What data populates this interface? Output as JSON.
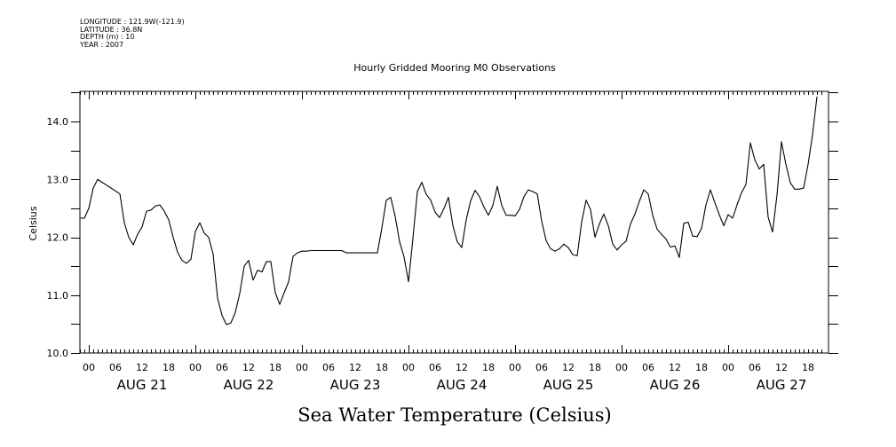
{
  "header": {
    "meta_lines": [
      "LONGITUDE : 121.9W(-121.9)",
      "LATITUDE : 36.8N",
      "DEPTH (m) : 10",
      "YEAR : 2007"
    ]
  },
  "chart_data": {
    "type": "line",
    "title": "Hourly Gridded Mooring M0 Observations",
    "xlabel": "Sea Water Temperature (Celsius)",
    "ylabel": "Celsius",
    "ylim": [
      10.0,
      14.5
    ],
    "y_ticks": [
      10.0,
      10.5,
      11.0,
      11.5,
      12.0,
      12.5,
      13.0,
      13.5,
      14.0,
      14.5
    ],
    "y_tick_labels": [
      "10.0",
      "11.0",
      "12.0",
      "13.0",
      "14.0"
    ],
    "y_tick_label_values": [
      10.0,
      11.0,
      12.0,
      13.0,
      14.0
    ],
    "x_range_hours": [
      -2,
      165
    ],
    "x_units": "hours since 2007-08-21 00:00",
    "x_hour_labels": [
      "00",
      "06",
      "12",
      "18"
    ],
    "x_day_labels": [
      "AUG 21",
      "AUG 22",
      "AUG 23",
      "AUG 24",
      "AUG 25",
      "AUG 26",
      "AUG 27"
    ],
    "x_start_label": "2007-08-20 22:00",
    "x_step_hours": 1,
    "grid": false,
    "series": [
      {
        "name": "Sea Water Temperature",
        "values": [
          12.33,
          12.33,
          12.5,
          12.85,
          13.0,
          12.95,
          12.9,
          12.85,
          12.8,
          12.75,
          12.25,
          12.0,
          11.87,
          12.05,
          12.18,
          12.45,
          12.47,
          12.54,
          12.56,
          12.45,
          12.3,
          12.0,
          11.74,
          11.6,
          11.55,
          11.62,
          12.1,
          12.25,
          12.07,
          12.0,
          11.71,
          10.95,
          10.65,
          10.49,
          10.52,
          10.7,
          11.03,
          11.5,
          11.6,
          11.26,
          11.43,
          11.4,
          11.58,
          11.58,
          11.04,
          10.84,
          11.04,
          11.23,
          11.67,
          11.73,
          11.76,
          11.76,
          11.77,
          11.77,
          11.77,
          11.77,
          11.77,
          11.77,
          11.77,
          11.77,
          11.73,
          11.73,
          11.73,
          11.73,
          11.73,
          11.73,
          11.73,
          11.73,
          12.16,
          12.64,
          12.69,
          12.36,
          11.92,
          11.66,
          11.23,
          11.98,
          12.79,
          12.95,
          12.74,
          12.64,
          12.43,
          12.34,
          12.5,
          12.69,
          12.2,
          11.92,
          11.82,
          12.3,
          12.63,
          12.81,
          12.7,
          12.52,
          12.38,
          12.55,
          12.88,
          12.55,
          12.38,
          12.38,
          12.37,
          12.48,
          12.7,
          12.82,
          12.79,
          12.75,
          12.28,
          11.94,
          11.8,
          11.76,
          11.8,
          11.88,
          11.82,
          11.7,
          11.68,
          12.26,
          12.64,
          12.48,
          12.0,
          12.23,
          12.4,
          12.2,
          11.88,
          11.78,
          11.87,
          11.93,
          12.23,
          12.4,
          12.62,
          12.82,
          12.75,
          12.38,
          12.14,
          12.05,
          11.97,
          11.83,
          11.85,
          11.65,
          12.24,
          12.26,
          12.02,
          12.01,
          12.15,
          12.56,
          12.82,
          12.6,
          12.39,
          12.2,
          12.39,
          12.33,
          12.56,
          12.77,
          12.91,
          13.63,
          13.34,
          13.18,
          13.26,
          12.35,
          12.09,
          12.73,
          13.65,
          13.26,
          12.94,
          12.83,
          12.83,
          12.85,
          13.26,
          13.77,
          14.43
        ]
      }
    ]
  }
}
